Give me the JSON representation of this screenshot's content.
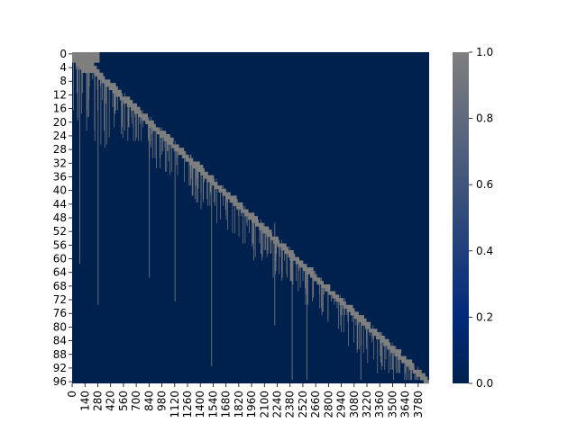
{
  "chart_data": {
    "type": "heatmap",
    "title": "",
    "xlabel": "",
    "ylabel": "",
    "n_rows": 97,
    "n_cols": 3900,
    "x_tick_labels": [
      "0",
      "140",
      "280",
      "420",
      "560",
      "700",
      "840",
      "980",
      "1120",
      "1260",
      "1400",
      "1540",
      "1680",
      "1820",
      "1960",
      "2100",
      "2240",
      "2380",
      "2520",
      "2660",
      "2800",
      "2940",
      "3080",
      "3220",
      "3360",
      "3500",
      "3640",
      "3780"
    ],
    "y_tick_labels": [
      "0",
      "4",
      "8",
      "12",
      "16",
      "20",
      "24",
      "28",
      "32",
      "36",
      "40",
      "44",
      "48",
      "52",
      "56",
      "60",
      "64",
      "68",
      "72",
      "76",
      "80",
      "84",
      "88",
      "92",
      "96"
    ],
    "value_range": [
      0.0,
      1.0
    ],
    "colorbar": {
      "tick_labels": [
        "0.0",
        "0.2",
        "0.4",
        "0.6",
        "0.8",
        "1.0"
      ],
      "colors": [
        "#00214e",
        "#002a7a",
        "#7f7f7f"
      ]
    },
    "background_value": 0.0,
    "active_value": 1.0,
    "pattern": "staircase: row r has value 1 at columns near r*40 (block width ~40-160), with sparse vertical streaks extending downward from earlier blocks"
  }
}
